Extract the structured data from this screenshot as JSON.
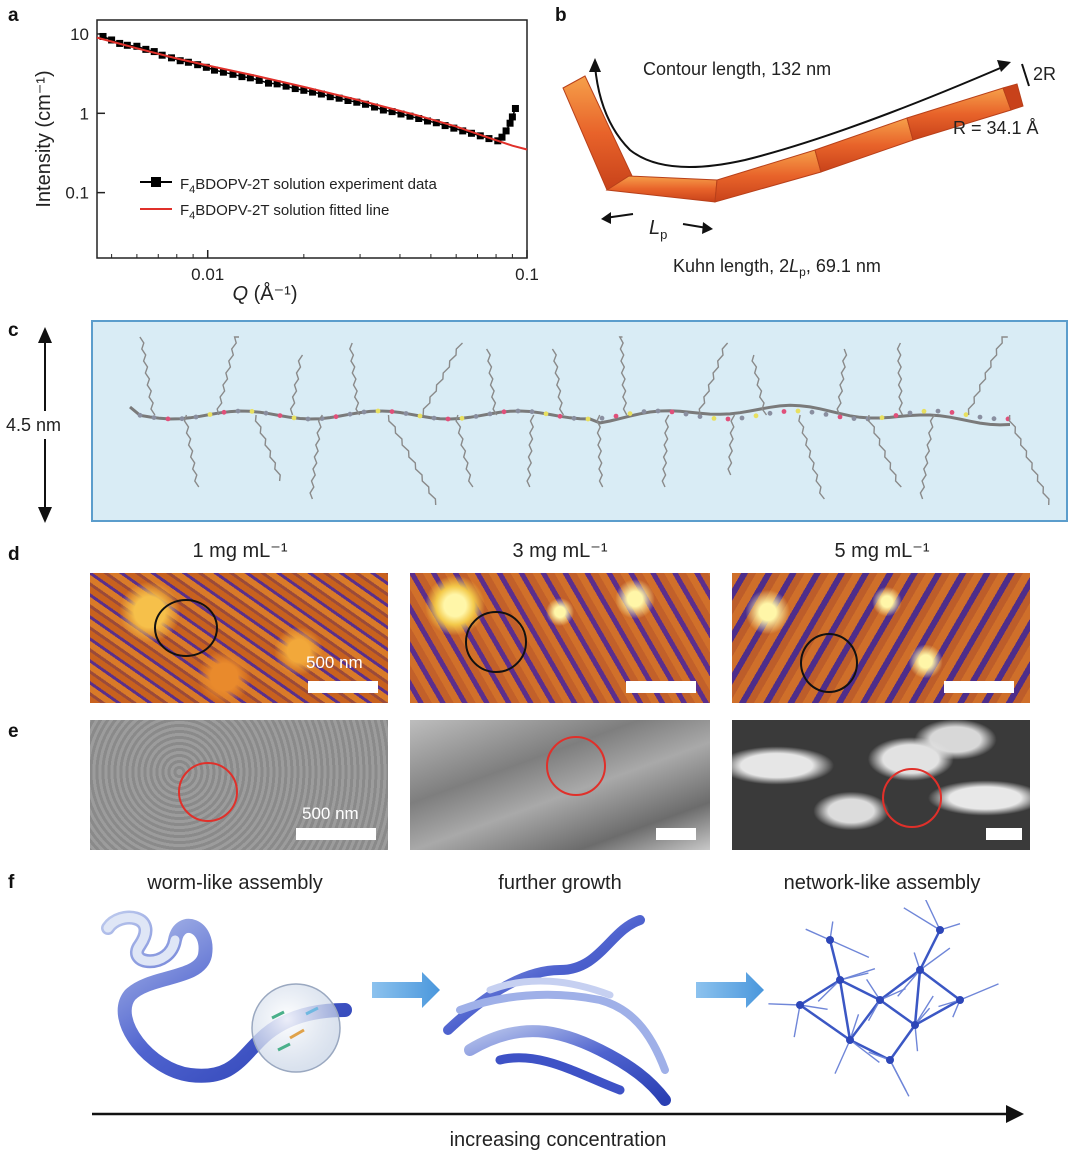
{
  "panels": {
    "a": "a",
    "b": "b",
    "c": "c",
    "d": "d",
    "e": "e",
    "f": "f"
  },
  "chart_data": {
    "type": "scatter",
    "xlabel_main": "Q",
    "xlabel_unit": " (Å⁻¹)",
    "ylabel": "Intensity (cm⁻¹)",
    "xscale": "log",
    "yscale": "log",
    "xlim": [
      0.0045,
      0.1
    ],
    "ylim": [
      0.015,
      15
    ],
    "x_ticks": [
      "0.01",
      "0.1"
    ],
    "y_ticks": [
      "10",
      "1",
      "0.1"
    ],
    "series": [
      {
        "name": "F4BDOPV-2T solution experiment data",
        "legend_pre": "F",
        "legend_sub": "4",
        "legend_post": "BDOPV-2T solution experiment data",
        "color": "#000000",
        "x": [
          0.0047,
          0.005,
          0.0053,
          0.0056,
          0.006,
          0.0064,
          0.0068,
          0.0072,
          0.0077,
          0.0082,
          0.0087,
          0.0093,
          0.0099,
          0.0105,
          0.0112,
          0.012,
          0.0128,
          0.0136,
          0.0145,
          0.0155,
          0.0165,
          0.0176,
          0.0188,
          0.02,
          0.0213,
          0.0227,
          0.0242,
          0.0258,
          0.0275,
          0.0293,
          0.0312,
          0.0333,
          0.0355,
          0.0378,
          0.0403,
          0.043,
          0.0458,
          0.0488,
          0.052,
          0.0554,
          0.059,
          0.0629,
          0.067,
          0.0714,
          0.076,
          0.081,
          0.0835,
          0.086,
          0.0885,
          0.09,
          0.092
        ],
        "y": [
          9.3,
          8.4,
          7.6,
          7.2,
          7.0,
          6.4,
          6.0,
          5.4,
          5.0,
          4.6,
          4.4,
          4.1,
          3.8,
          3.5,
          3.3,
          3.1,
          2.9,
          2.8,
          2.6,
          2.4,
          2.35,
          2.2,
          2.05,
          1.95,
          1.85,
          1.75,
          1.62,
          1.55,
          1.45,
          1.38,
          1.3,
          1.2,
          1.1,
          1.05,
          0.98,
          0.92,
          0.86,
          0.8,
          0.76,
          0.7,
          0.65,
          0.6,
          0.56,
          0.52,
          0.48,
          0.45,
          0.5,
          0.6,
          0.75,
          0.9,
          1.15
        ]
      },
      {
        "name": "F4BDOPV-2T solution fitted line",
        "legend_pre": "F",
        "legend_sub": "4",
        "legend_post": "BDOPV-2T solution fitted line",
        "color": "#e0302a",
        "x": [
          0.0045,
          0.006,
          0.008,
          0.01,
          0.014,
          0.02,
          0.03,
          0.045,
          0.06,
          0.075,
          0.09,
          0.1
        ],
        "y": [
          9.0,
          6.6,
          4.9,
          4.0,
          3.0,
          2.15,
          1.45,
          0.95,
          0.68,
          0.5,
          0.39,
          0.35
        ]
      }
    ]
  },
  "panel_b": {
    "contour": "Contour length, 132 nm",
    "radius_mark": "2R",
    "radius": "R = 34.1 Å",
    "lp_main": "L",
    "lp_sub": "p",
    "kuhn_pre": "Kuhn length, 2",
    "kuhn_L": "L",
    "kuhn_sub": "p",
    "kuhn_post": ", 69.1 nm"
  },
  "panel_c": {
    "size": "4.5 nm"
  },
  "panel_d": {
    "concentrations": [
      "1 mg mL⁻¹",
      "3 mg mL⁻¹",
      "5 mg mL⁻¹"
    ],
    "scalebar": "500 nm"
  },
  "panel_e": {
    "scalebar": "500 nm"
  },
  "panel_f": {
    "stages": [
      "worm-like assembly",
      "further growth",
      "network-like assembly"
    ],
    "axis": "increasing concentration"
  }
}
